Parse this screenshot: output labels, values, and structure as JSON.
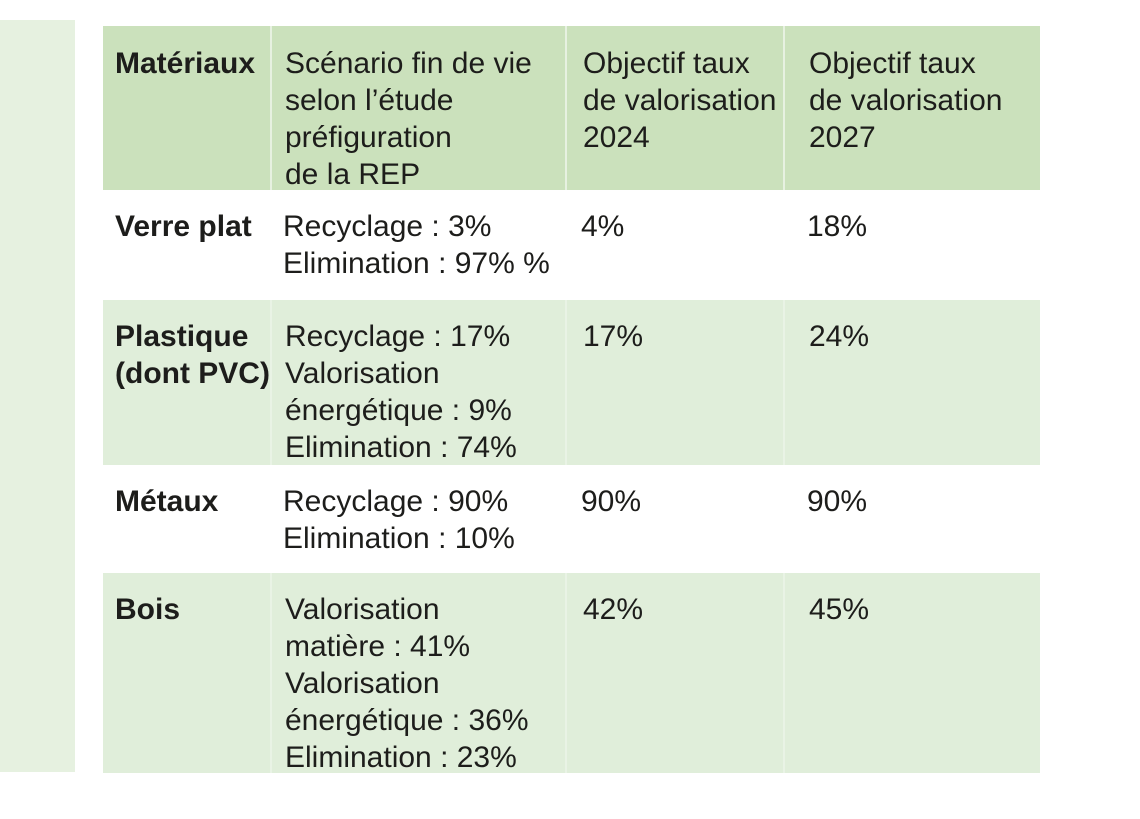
{
  "colors": {
    "page-bg": "#ffffff",
    "header-bg": "#cbe1bc",
    "row-shaded-bg": "#e0eeda",
    "strip-bg": "#e6f1e0",
    "text": "#1d1d1b"
  },
  "table": {
    "columns": [
      {
        "label": "Matériaux"
      },
      {
        "label": "Scénario fin de vie\nselon l’étude\npréfiguration\nde la REP"
      },
      {
        "label": "Objectif taux\nde valorisation\n2024"
      },
      {
        "label": "Objectif taux\nde valorisation\n2027"
      }
    ],
    "rows": [
      {
        "material": "Verre plat",
        "scenario": "Recyclage : 3%\nElimination : 97% %",
        "objectif_2024": "4%",
        "objectif_2027": "18%"
      },
      {
        "material": "Plastique\n(dont PVC)",
        "scenario": "Recyclage : 17%\nValorisation\nénergétique : 9%\nElimination : 74%",
        "objectif_2024": "17%",
        "objectif_2027": "24%"
      },
      {
        "material": "Métaux",
        "scenario": "Recyclage : 90%\nElimination : 10%",
        "objectif_2024": "90%",
        "objectif_2027": "90%"
      },
      {
        "material": "Bois",
        "scenario": "Valorisation\nmatière : 41%\nValorisation\nénergétique : 36%\nElimination : 23%",
        "objectif_2024": "42%",
        "objectif_2027": "45%"
      }
    ]
  }
}
